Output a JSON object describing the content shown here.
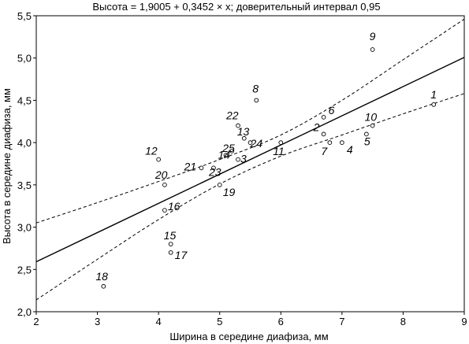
{
  "chart_data": {
    "type": "scatter",
    "title": "Высота = 1,9005 + 0,3452 × x; доверительный интервал 0,95",
    "xlabel": "Ширина в середине диафиза, мм",
    "ylabel": "Высота в середине диафиза, мм",
    "xlim": [
      2,
      9
    ],
    "ylim": [
      2.0,
      5.5
    ],
    "x_ticks": [
      2,
      3,
      4,
      5,
      6,
      7,
      8,
      9
    ],
    "y_ticks": [
      2.0,
      2.5,
      3.0,
      3.5,
      4.0,
      4.5,
      5.0,
      5.5
    ],
    "x_tick_labels": [
      "2",
      "3",
      "4",
      "5",
      "6",
      "7",
      "8",
      "9"
    ],
    "y_tick_labels": [
      "2,0",
      "2,5",
      "3,0",
      "3,5",
      "4,0",
      "4,5",
      "5,0",
      "5,5"
    ],
    "grid": false,
    "regression": {
      "intercept": 1.9005,
      "slope": 0.3452
    },
    "confidence_band": {
      "level": 0.95,
      "upper": [
        [
          2,
          3.05
        ],
        [
          3,
          3.29
        ],
        [
          4,
          3.54
        ],
        [
          5,
          3.8
        ],
        [
          6,
          4.09
        ],
        [
          7,
          4.5
        ],
        [
          8,
          4.98
        ],
        [
          9,
          5.46
        ]
      ],
      "lower": [
        [
          2,
          2.14
        ],
        [
          3,
          2.62
        ],
        [
          4,
          3.09
        ],
        [
          5,
          3.51
        ],
        [
          6,
          3.84
        ],
        [
          7,
          4.09
        ],
        [
          8,
          4.34
        ],
        [
          9,
          4.58
        ]
      ]
    },
    "points": [
      {
        "label": "1",
        "x": 8.5,
        "y": 4.45
      },
      {
        "label": "2",
        "x": 6.7,
        "y": 4.1
      },
      {
        "label": "3",
        "x": 5.3,
        "y": 3.8
      },
      {
        "label": "4",
        "x": 7.0,
        "y": 4.0
      },
      {
        "label": "5",
        "x": 7.4,
        "y": 4.1
      },
      {
        "label": "6",
        "x": 6.7,
        "y": 4.3
      },
      {
        "label": "7",
        "x": 6.8,
        "y": 4.0
      },
      {
        "label": "8",
        "x": 5.6,
        "y": 4.5
      },
      {
        "label": "9",
        "x": 7.5,
        "y": 5.1
      },
      {
        "label": "10",
        "x": 7.5,
        "y": 4.2
      },
      {
        "label": "11",
        "x": 6.0,
        "y": 4.0
      },
      {
        "label": "12",
        "x": 4.0,
        "y": 3.8
      },
      {
        "label": "13",
        "x": 5.4,
        "y": 4.05
      },
      {
        "label": "14",
        "x": 5.1,
        "y": 3.85
      },
      {
        "label": "15",
        "x": 4.2,
        "y": 2.8
      },
      {
        "label": "16",
        "x": 4.1,
        "y": 3.2
      },
      {
        "label": "17",
        "x": 4.2,
        "y": 2.7
      },
      {
        "label": "18",
        "x": 3.1,
        "y": 2.3
      },
      {
        "label": "19",
        "x": 5.0,
        "y": 3.5
      },
      {
        "label": "20",
        "x": 4.1,
        "y": 3.5
      },
      {
        "label": "21",
        "x": 4.7,
        "y": 3.7
      },
      {
        "label": "22",
        "x": 5.3,
        "y": 4.2
      },
      {
        "label": "23",
        "x": 4.9,
        "y": 3.7
      },
      {
        "label": "24",
        "x": 5.5,
        "y": 4.0
      },
      {
        "label": "25",
        "x": 5.2,
        "y": 3.9
      }
    ]
  }
}
